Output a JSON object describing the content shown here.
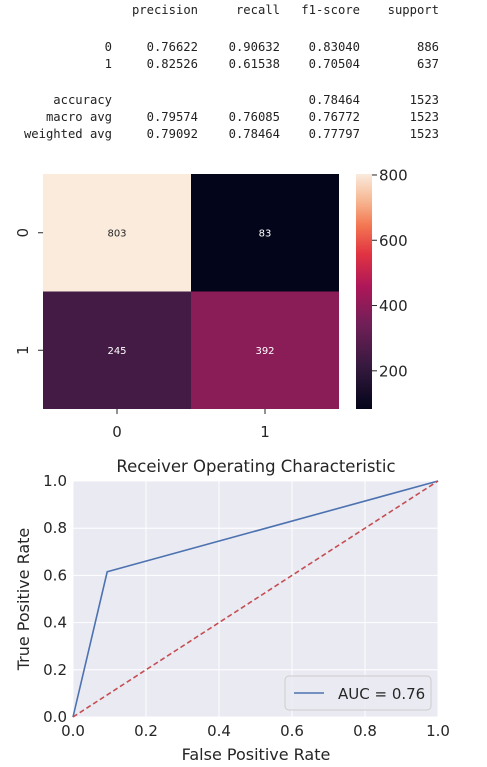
{
  "report": {
    "headers": [
      "precision",
      "recall",
      "f1-score",
      "support"
    ],
    "rows": [
      {
        "label": "0",
        "precision": "0.76622",
        "recall": "0.90632",
        "f1": "0.83040",
        "support": "886"
      },
      {
        "label": "1",
        "precision": "0.82526",
        "recall": "0.61538",
        "f1": "0.70504",
        "support": "637"
      },
      {
        "label": "accuracy",
        "precision": "",
        "recall": "",
        "f1": "0.78464",
        "support": "1523"
      },
      {
        "label": "macro avg",
        "precision": "0.79574",
        "recall": "0.76085",
        "f1": "0.76772",
        "support": "1523"
      },
      {
        "label": "weighted avg",
        "precision": "0.79092",
        "recall": "0.78464",
        "f1": "0.77797",
        "support": "1523"
      }
    ]
  },
  "chart_data": [
    {
      "type": "heatmap",
      "x_categories": [
        "0",
        "1"
      ],
      "y_categories": [
        "0",
        "1"
      ],
      "values": [
        [
          803,
          83
        ],
        [
          245,
          392
        ]
      ],
      "colorbar": {
        "ticks": [
          200,
          400,
          600,
          800
        ],
        "min": 83,
        "max": 803,
        "colormap": "rocket"
      },
      "colors": {
        "low": "#03051a",
        "high": "#faebdd"
      }
    },
    {
      "type": "line",
      "title": "Receiver Operating Characteristic",
      "xlabel": "False Positive Rate",
      "ylabel": "True Positive Rate",
      "xlim": [
        0.0,
        1.0
      ],
      "ylim": [
        0.0,
        1.0
      ],
      "xticks": [
        "0.0",
        "0.2",
        "0.4",
        "0.6",
        "0.8",
        "1.0"
      ],
      "yticks": [
        "0.0",
        "0.2",
        "0.4",
        "0.6",
        "0.8",
        "1.0"
      ],
      "grid": true,
      "legend_position": "bottom-right",
      "series": [
        {
          "name": "AUC = 0.76",
          "x": [
            0.0,
            0.0937,
            1.0
          ],
          "y": [
            0.0,
            0.6154,
            1.0
          ],
          "color": "#4c72b0",
          "style": "solid"
        },
        {
          "x": [
            0.0,
            1.0
          ],
          "y": [
            0.0,
            1.0
          ],
          "color": "#c44e52",
          "style": "dashed"
        }
      ]
    }
  ]
}
